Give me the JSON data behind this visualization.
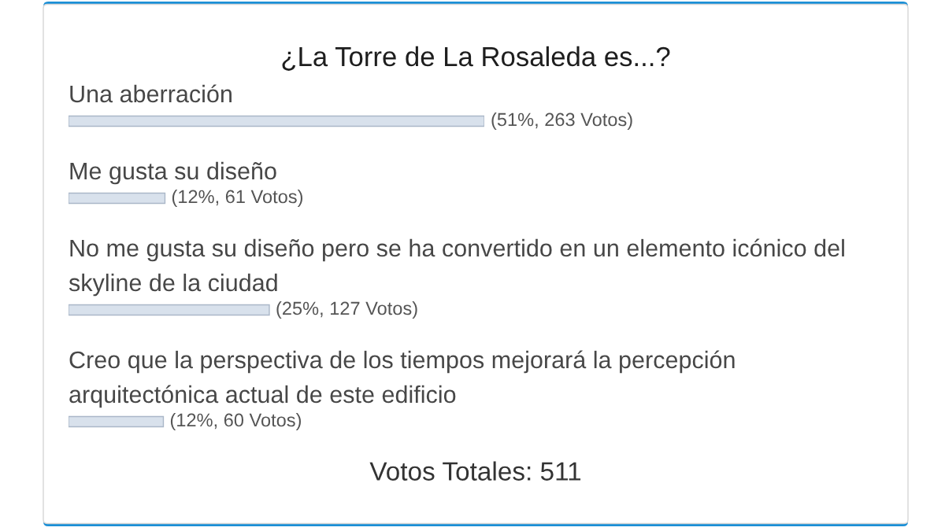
{
  "chart_data": {
    "type": "bar",
    "orientation": "horizontal",
    "title": "¿La Torre de La Rosaleda es...?",
    "categories": [
      "Una aberración",
      "Me gusta su diseño",
      "No me gusta su diseño pero se ha convertido en un elemento icónico del skyline de la ciudad",
      "Creo que la perspectiva de los tiempos mejorará la percepción arquitectónica actual de este edificio"
    ],
    "values": [
      263,
      61,
      127,
      60
    ],
    "value_labels": [
      "(51%, 263 Votos)",
      "(12%, 61 Votos)",
      "(25%, 127 Votos)",
      "(12%, 60 Votos)"
    ],
    "color": "#d8e1ec",
    "annotations": [
      "Votos Totales: 511"
    ]
  }
}
